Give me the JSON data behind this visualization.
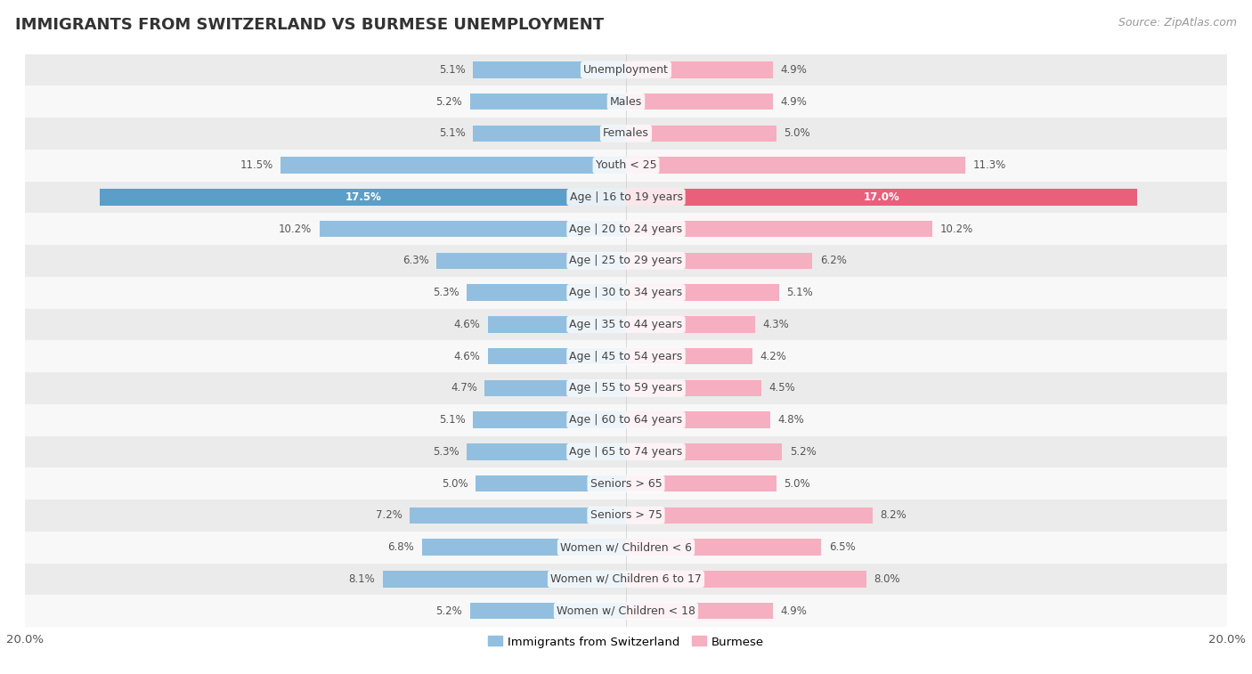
{
  "title": "IMMIGRANTS FROM SWITZERLAND VS BURMESE UNEMPLOYMENT",
  "source": "Source: ZipAtlas.com",
  "categories": [
    "Unemployment",
    "Males",
    "Females",
    "Youth < 25",
    "Age | 16 to 19 years",
    "Age | 20 to 24 years",
    "Age | 25 to 29 years",
    "Age | 30 to 34 years",
    "Age | 35 to 44 years",
    "Age | 45 to 54 years",
    "Age | 55 to 59 years",
    "Age | 60 to 64 years",
    "Age | 65 to 74 years",
    "Seniors > 65",
    "Seniors > 75",
    "Women w/ Children < 6",
    "Women w/ Children 6 to 17",
    "Women w/ Children < 18"
  ],
  "swiss_values": [
    5.1,
    5.2,
    5.1,
    11.5,
    17.5,
    10.2,
    6.3,
    5.3,
    4.6,
    4.6,
    4.7,
    5.1,
    5.3,
    5.0,
    7.2,
    6.8,
    8.1,
    5.2
  ],
  "burmese_values": [
    4.9,
    4.9,
    5.0,
    11.3,
    17.0,
    10.2,
    6.2,
    5.1,
    4.3,
    4.2,
    4.5,
    4.8,
    5.2,
    5.0,
    8.2,
    6.5,
    8.0,
    4.9
  ],
  "swiss_color": "#92bfdf",
  "burmese_color": "#f5afc0",
  "swiss_highlight_color": "#5b9ec9",
  "burmese_highlight_color": "#e8607a",
  "highlight_row": 4,
  "row_bg_odd": "#ebebeb",
  "row_bg_even": "#f8f8f8",
  "xlim": 20.0,
  "label_swiss": "Immigrants from Switzerland",
  "label_burmese": "Burmese",
  "title_fontsize": 13,
  "source_fontsize": 9,
  "bar_height": 0.52,
  "cat_label_fontsize": 9,
  "value_fontsize": 8.5,
  "value_color_inside": "#ffffff",
  "value_color_outside": "#555555"
}
